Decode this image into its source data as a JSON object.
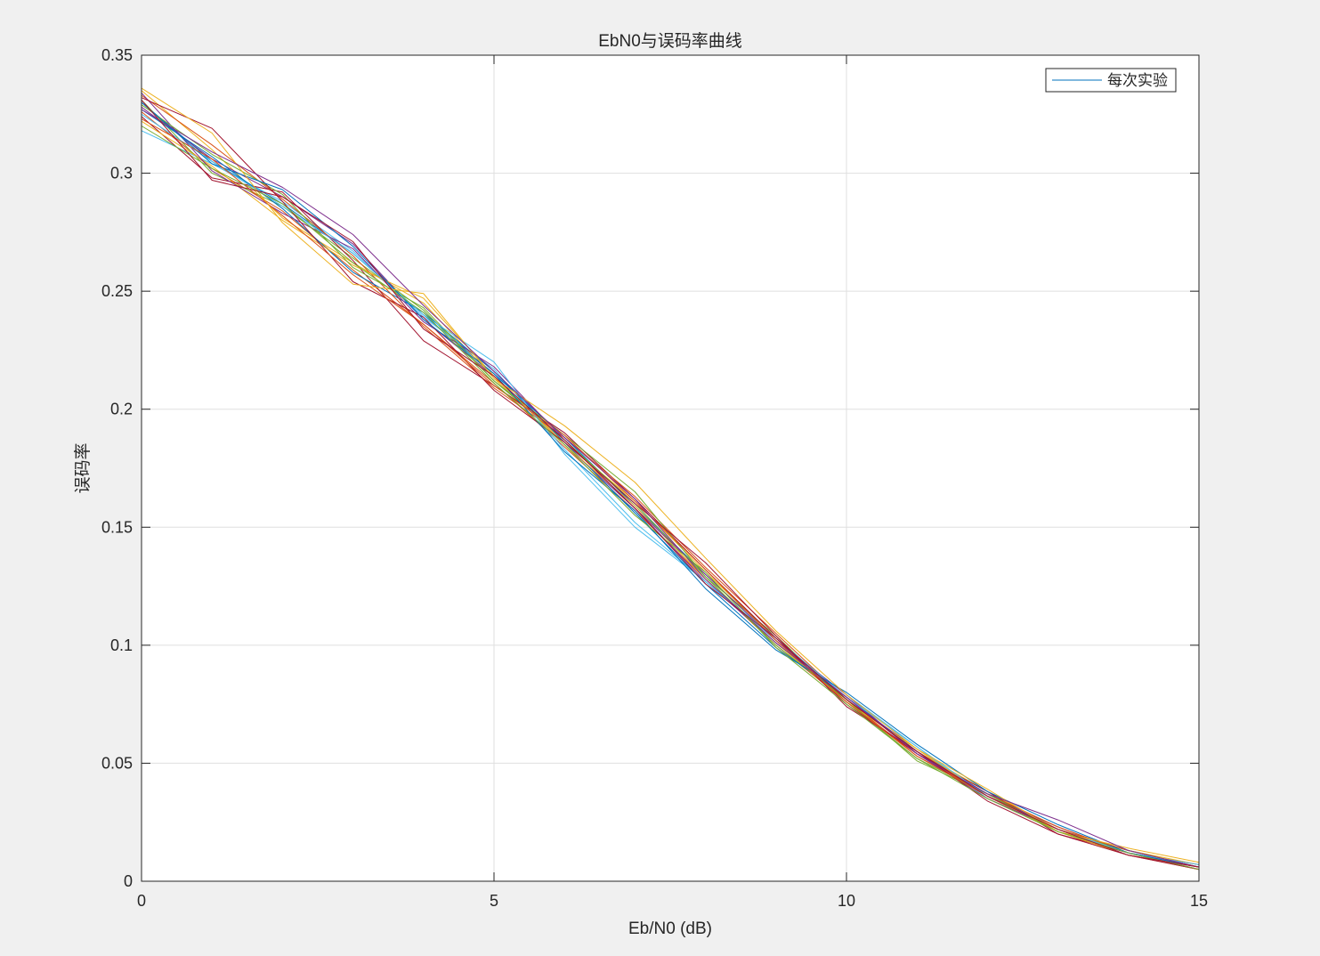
{
  "chart_data": {
    "type": "line",
    "title": "EbN0与误码率曲线",
    "xlabel": "Eb/N0 (dB)",
    "ylabel": "误码率",
    "xlim": [
      0,
      15
    ],
    "ylim": [
      0,
      0.35
    ],
    "x_ticks": [
      0,
      5,
      10,
      15
    ],
    "y_ticks": [
      0,
      0.05,
      0.1,
      0.15,
      0.2,
      0.25,
      0.3,
      0.35
    ],
    "x_tick_labels": [
      "0",
      "5",
      "10",
      "15"
    ],
    "y_tick_labels": [
      "0",
      "0.05",
      "0.1",
      "0.15",
      "0.2",
      "0.25",
      "0.3",
      "0.35"
    ],
    "grid": true,
    "legend": {
      "label": "每次实验",
      "placement": "top-right"
    },
    "x": [
      0,
      1,
      2,
      3,
      4,
      5,
      6,
      7,
      8,
      9,
      10,
      11,
      12,
      13,
      14,
      15
    ],
    "series": [
      {
        "color": "#0072BD",
        "values": [
          0.33,
          0.305,
          0.287,
          0.266,
          0.24,
          0.215,
          0.188,
          0.159,
          0.13,
          0.102,
          0.078,
          0.055,
          0.037,
          0.022,
          0.012,
          0.006
        ]
      },
      {
        "color": "#D95319",
        "values": [
          0.326,
          0.302,
          0.284,
          0.259,
          0.236,
          0.211,
          0.184,
          0.157,
          0.128,
          0.1,
          0.076,
          0.054,
          0.036,
          0.021,
          0.011,
          0.005
        ]
      },
      {
        "color": "#EDB120",
        "values": [
          0.335,
          0.31,
          0.281,
          0.262,
          0.245,
          0.213,
          0.186,
          0.161,
          0.131,
          0.103,
          0.078,
          0.055,
          0.038,
          0.022,
          0.013,
          0.007
        ]
      },
      {
        "color": "#7E2F8E",
        "values": [
          0.328,
          0.306,
          0.29,
          0.27,
          0.238,
          0.214,
          0.185,
          0.158,
          0.127,
          0.101,
          0.077,
          0.056,
          0.036,
          0.023,
          0.012,
          0.006
        ]
      },
      {
        "color": "#77AC30",
        "values": [
          0.331,
          0.3,
          0.286,
          0.264,
          0.242,
          0.212,
          0.187,
          0.16,
          0.129,
          0.104,
          0.076,
          0.052,
          0.037,
          0.021,
          0.012,
          0.005
        ]
      },
      {
        "color": "#4DBEEE",
        "values": [
          0.318,
          0.304,
          0.288,
          0.267,
          0.239,
          0.217,
          0.183,
          0.152,
          0.127,
          0.102,
          0.079,
          0.057,
          0.035,
          0.022,
          0.011,
          0.006
        ]
      },
      {
        "color": "#A2142F",
        "values": [
          0.324,
          0.298,
          0.292,
          0.263,
          0.229,
          0.21,
          0.19,
          0.162,
          0.132,
          0.103,
          0.075,
          0.054,
          0.038,
          0.02,
          0.012,
          0.005
        ]
      },
      {
        "color": "#0072BD",
        "values": [
          0.327,
          0.307,
          0.285,
          0.258,
          0.241,
          0.216,
          0.186,
          0.156,
          0.126,
          0.099,
          0.078,
          0.055,
          0.036,
          0.022,
          0.013,
          0.006
        ]
      },
      {
        "color": "#D95319",
        "values": [
          0.333,
          0.312,
          0.289,
          0.265,
          0.235,
          0.209,
          0.188,
          0.163,
          0.133,
          0.105,
          0.077,
          0.053,
          0.037,
          0.023,
          0.012,
          0.007
        ]
      },
      {
        "color": "#EDB120",
        "values": [
          0.322,
          0.303,
          0.28,
          0.261,
          0.247,
          0.214,
          0.185,
          0.159,
          0.128,
          0.101,
          0.076,
          0.056,
          0.036,
          0.021,
          0.011,
          0.006
        ]
      },
      {
        "color": "#7E2F8E",
        "values": [
          0.334,
          0.301,
          0.283,
          0.268,
          0.237,
          0.218,
          0.187,
          0.158,
          0.13,
          0.102,
          0.079,
          0.054,
          0.035,
          0.022,
          0.012,
          0.005
        ]
      },
      {
        "color": "#77AC30",
        "values": [
          0.329,
          0.308,
          0.291,
          0.26,
          0.243,
          0.212,
          0.189,
          0.165,
          0.129,
          0.1,
          0.077,
          0.051,
          0.037,
          0.021,
          0.013,
          0.006
        ]
      },
      {
        "color": "#4DBEEE",
        "values": [
          0.325,
          0.305,
          0.286,
          0.266,
          0.24,
          0.22,
          0.181,
          0.15,
          0.127,
          0.103,
          0.078,
          0.057,
          0.036,
          0.022,
          0.012,
          0.007
        ]
      },
      {
        "color": "#A2142F",
        "values": [
          0.332,
          0.319,
          0.288,
          0.254,
          0.239,
          0.208,
          0.186,
          0.16,
          0.135,
          0.104,
          0.074,
          0.055,
          0.034,
          0.02,
          0.011,
          0.005
        ]
      },
      {
        "color": "#0072BD",
        "values": [
          0.33,
          0.304,
          0.293,
          0.269,
          0.238,
          0.215,
          0.182,
          0.157,
          0.124,
          0.098,
          0.08,
          0.058,
          0.038,
          0.024,
          0.012,
          0.006
        ]
      },
      {
        "color": "#D95319",
        "values": [
          0.323,
          0.306,
          0.282,
          0.257,
          0.236,
          0.21,
          0.189,
          0.161,
          0.132,
          0.102,
          0.076,
          0.053,
          0.036,
          0.022,
          0.013,
          0.006
        ]
      },
      {
        "color": "#EDB120",
        "values": [
          0.336,
          0.317,
          0.279,
          0.253,
          0.249,
          0.213,
          0.193,
          0.169,
          0.137,
          0.106,
          0.079,
          0.056,
          0.039,
          0.021,
          0.014,
          0.008
        ]
      },
      {
        "color": "#7E2F8E",
        "values": [
          0.327,
          0.309,
          0.294,
          0.274,
          0.244,
          0.216,
          0.188,
          0.162,
          0.128,
          0.101,
          0.078,
          0.054,
          0.037,
          0.026,
          0.013,
          0.006
        ]
      },
      {
        "color": "#77AC30",
        "values": [
          0.32,
          0.302,
          0.287,
          0.262,
          0.241,
          0.211,
          0.185,
          0.155,
          0.131,
          0.099,
          0.075,
          0.052,
          0.035,
          0.021,
          0.012,
          0.005
        ]
      },
      {
        "color": "#A2142F",
        "values": [
          0.331,
          0.297,
          0.29,
          0.271,
          0.234,
          0.214,
          0.187,
          0.158,
          0.126,
          0.103,
          0.077,
          0.055,
          0.036,
          0.022,
          0.011,
          0.006
        ]
      }
    ]
  }
}
